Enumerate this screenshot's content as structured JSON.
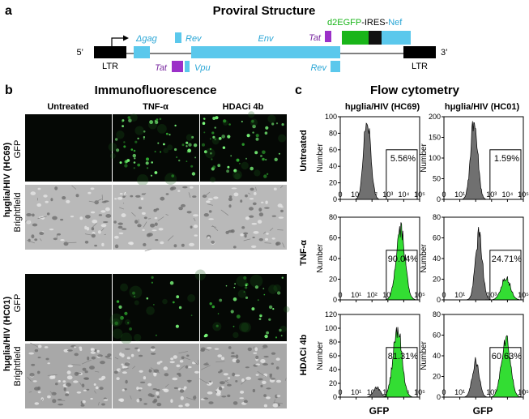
{
  "panels": {
    "a": {
      "letter": "a",
      "title": "Proviral Structure"
    },
    "b": {
      "letter": "b",
      "title": "Immunofluorescence"
    },
    "c": {
      "letter": "c",
      "title": "Flow cytometry"
    }
  },
  "proviral": {
    "five_prime": "5’",
    "three_prime": "3’",
    "ltr": "LTR",
    "genes": {
      "gag": "Δgag",
      "rev_top": "Rev",
      "env": "Env",
      "tat_top": "Tat",
      "tat_bottom": "Tat",
      "vpu": "Vpu",
      "rev_bottom": "Rev"
    },
    "reporter": {
      "d2egfp": "d2EGFP",
      "ires": "-IRES-",
      "nef": "Nef"
    },
    "colors": {
      "gene": "#5bc8ec",
      "tat": "#9b30c8",
      "egfp": "#19b519",
      "ires": "#111111",
      "ltr": "#000000"
    }
  },
  "immuno": {
    "columns": [
      "Untreated",
      "TNF-α",
      "HDACi 4b"
    ],
    "groups": [
      {
        "name": "hμglia/HIV (HC69)",
        "rows": [
          "GFP",
          "Brightfield"
        ]
      },
      {
        "name": "hμglia/HIV (HC01)",
        "rows": [
          "GFP",
          "Brightfield"
        ]
      }
    ]
  },
  "flow": {
    "columns": [
      "hμglia/HIV (HC69)",
      "hμglia/HIV (HC01)"
    ],
    "row_labels": [
      "Untreated",
      "TNF-α",
      "HDACi 4b"
    ],
    "y_axis_label": "Number",
    "x_axis_label": "GFP",
    "x_ticks": [
      "0",
      "10¹",
      "10²",
      "10³",
      "10⁴",
      "10⁵"
    ],
    "colors": {
      "negative": "#707070",
      "positive": "#33dd33"
    }
  },
  "chart_data": [
    {
      "type": "area",
      "sample": "hμglia/HIV (HC69)",
      "treatment": "Untreated",
      "ylim": [
        0,
        100
      ],
      "yticks": [
        0,
        20,
        40,
        60,
        80,
        100
      ],
      "gated_percent": "5.56%",
      "gated_value": 5.56,
      "peaks": [
        {
          "log_center": 1.7,
          "height": 100,
          "color": "negative"
        }
      ]
    },
    {
      "type": "area",
      "sample": "hμglia/HIV (HC01)",
      "treatment": "Untreated",
      "ylim": [
        0,
        200
      ],
      "yticks": [
        0,
        50,
        100,
        150,
        200
      ],
      "gated_percent": "1.59%",
      "gated_value": 1.59,
      "peaks": [
        {
          "log_center": 1.9,
          "height": 190,
          "color": "negative"
        }
      ]
    },
    {
      "type": "area",
      "sample": "hμglia/HIV (HC69)",
      "treatment": "TNF-α",
      "ylim": [
        0,
        80
      ],
      "yticks": [
        0,
        20,
        40,
        60,
        80
      ],
      "gated_percent": "90.04%",
      "gated_value": 90.04,
      "peaks": [
        {
          "log_center": 3.8,
          "height": 68,
          "color": "positive"
        }
      ]
    },
    {
      "type": "area",
      "sample": "hμglia/HIV (HC01)",
      "treatment": "TNF-α",
      "ylim": [
        0,
        80
      ],
      "yticks": [
        0,
        20,
        40,
        60,
        80
      ],
      "gated_percent": "24.71%",
      "gated_value": 24.71,
      "peaks": [
        {
          "log_center": 2.2,
          "height": 62,
          "color": "negative"
        },
        {
          "log_center": 3.9,
          "height": 22,
          "color": "positive"
        }
      ]
    },
    {
      "type": "area",
      "sample": "hμglia/HIV (HC69)",
      "treatment": "HDACi 4b",
      "ylim": [
        0,
        120
      ],
      "yticks": [
        0,
        20,
        40,
        60,
        80,
        100,
        120
      ],
      "gated_percent": "81.31%",
      "gated_value": 81.31,
      "peaks": [
        {
          "log_center": 3.6,
          "height": 100,
          "color": "positive"
        },
        {
          "log_center": 2.3,
          "height": 14,
          "color": "negative"
        }
      ]
    },
    {
      "type": "area",
      "sample": "hμglia/HIV (HC01)",
      "treatment": "HDACi 4b",
      "ylim": [
        0,
        80
      ],
      "yticks": [
        0,
        20,
        40,
        60,
        80
      ],
      "gated_percent": "60.63%",
      "gated_value": 60.63,
      "peaks": [
        {
          "log_center": 2.0,
          "height": 34,
          "color": "negative"
        },
        {
          "log_center": 3.9,
          "height": 58,
          "color": "positive"
        }
      ]
    }
  ]
}
